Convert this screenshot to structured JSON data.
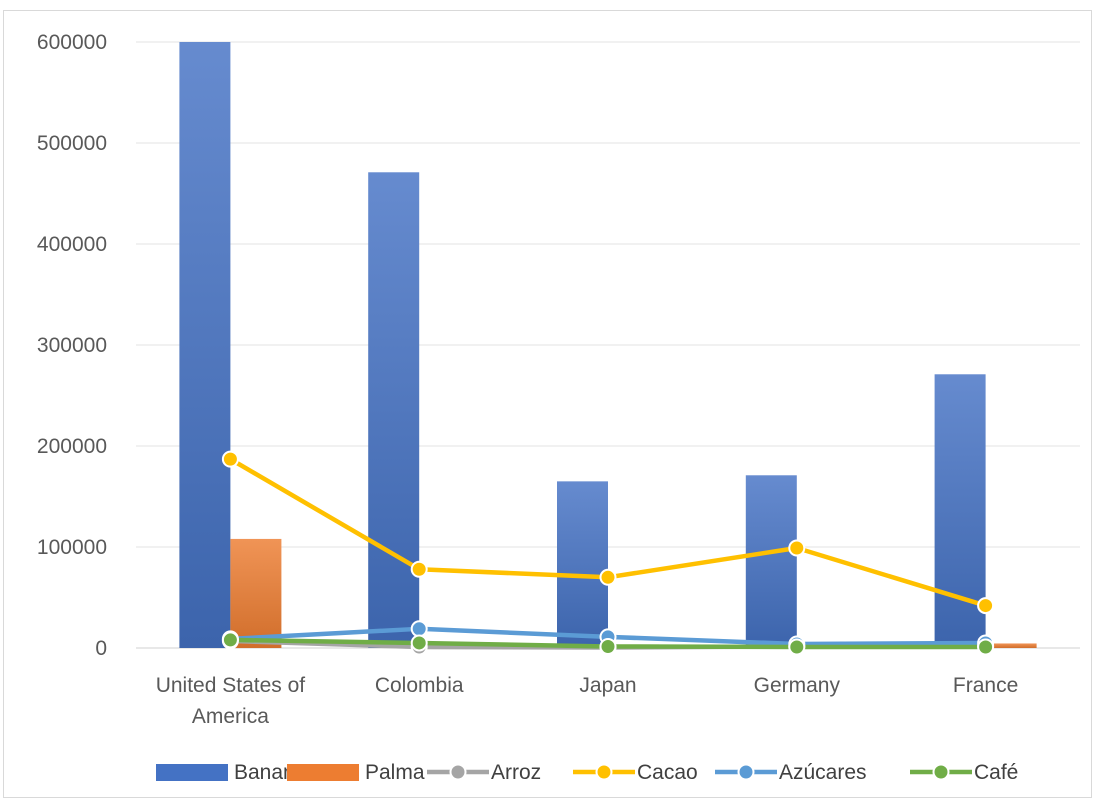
{
  "chart_data": {
    "type": "bar",
    "categories": [
      "United States of America",
      "Colombia",
      "Japan",
      "Germany",
      "France"
    ],
    "category_label_lines": [
      [
        "United States of",
        "America"
      ],
      [
        "Colombia"
      ],
      [
        "Japan"
      ],
      [
        "Germany"
      ],
      [
        "France"
      ]
    ],
    "ylim": [
      0,
      600000
    ],
    "yticks": [
      "0",
      "100000",
      "200000",
      "300000",
      "400000",
      "500000",
      "600000"
    ],
    "grid": true,
    "legend_position": "bottom",
    "series": [
      {
        "name": "Banano",
        "kind": "bar",
        "color": "#4472c4",
        "values": [
          600000,
          471000,
          165000,
          171000,
          271000
        ]
      },
      {
        "name": "Palma",
        "kind": "bar",
        "color": "#ed7d31",
        "values": [
          108000,
          2500,
          3500,
          1500,
          4500
        ]
      },
      {
        "name": "Arroz",
        "kind": "line",
        "color": "#a5a5a5",
        "values": [
          7000,
          1000,
          500,
          1500,
          2000
        ]
      },
      {
        "name": "Cacao",
        "kind": "line",
        "color": "#ffc000",
        "values": [
          187000,
          78000,
          70000,
          99000,
          42000
        ]
      },
      {
        "name": "Azúcares",
        "kind": "line",
        "color": "#5b9bd5",
        "values": [
          9000,
          19000,
          11000,
          4000,
          5000
        ]
      },
      {
        "name": "Café",
        "kind": "line",
        "color": "#70ad47",
        "values": [
          8000,
          5000,
          1500,
          1000,
          1000
        ]
      }
    ]
  }
}
